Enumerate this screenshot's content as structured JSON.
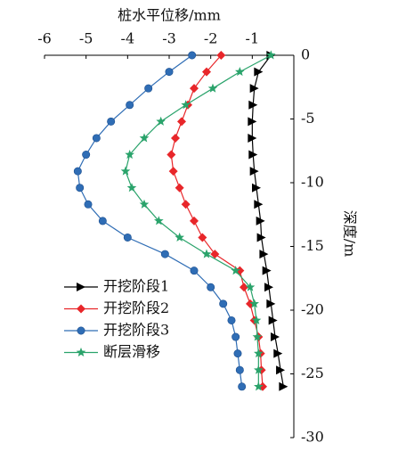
{
  "chart_data": {
    "type": "line",
    "x_label": "桩水平位移/mm",
    "y_label": "深度/m",
    "xlim": [
      -6,
      0
    ],
    "xticks": [
      -6,
      -5,
      -4,
      -3,
      -2,
      -1
    ],
    "ylim": [
      -30,
      0
    ],
    "yticks": [
      0,
      -5,
      -10,
      -15,
      -20,
      -25,
      -30
    ],
    "y": [
      0,
      -1.3,
      -2.6,
      -3.9,
      -5.2,
      -6.5,
      -7.8,
      -9.1,
      -10.4,
      -11.7,
      -13,
      -14.3,
      -15.6,
      -16.9,
      -18.2,
      -19.5,
      -20.8,
      -22.1,
      -23.4,
      -24.7,
      -26
    ],
    "series": [
      {
        "name": "开挖阶段1",
        "color": "#000000",
        "marker": "triangle",
        "values": [
          -0.55,
          -0.85,
          -0.95,
          -0.98,
          -1.0,
          -1.0,
          -0.98,
          -0.95,
          -0.9,
          -0.85,
          -0.8,
          -0.78,
          -0.72,
          -0.65,
          -0.6,
          -0.55,
          -0.5,
          -0.45,
          -0.38,
          -0.32,
          -0.25
        ]
      },
      {
        "name": "开挖阶段2",
        "color": "#e8262a",
        "marker": "diamond",
        "values": [
          -1.75,
          -2.1,
          -2.4,
          -2.55,
          -2.7,
          -2.85,
          -2.95,
          -2.9,
          -2.75,
          -2.6,
          -2.4,
          -2.2,
          -1.9,
          -1.3,
          -1.2,
          -1.05,
          -0.95,
          -0.85,
          -0.8,
          -0.78,
          -0.75
        ]
      },
      {
        "name": "开挖阶段3",
        "color": "#2f6db5",
        "marker": "circle",
        "values": [
          -2.45,
          -3.0,
          -3.5,
          -3.95,
          -4.4,
          -4.75,
          -5.0,
          -5.2,
          -5.15,
          -4.95,
          -4.6,
          -4.0,
          -3.1,
          -2.4,
          -2.0,
          -1.7,
          -1.5,
          -1.4,
          -1.35,
          -1.3,
          -1.25
        ]
      },
      {
        "name": "断层滑移",
        "color": "#2aa36b",
        "marker": "star",
        "values": [
          -0.55,
          -1.3,
          -1.95,
          -2.6,
          -3.2,
          -3.6,
          -3.95,
          -4.05,
          -3.9,
          -3.6,
          -3.25,
          -2.75,
          -2.1,
          -1.4,
          -1.05,
          -0.95,
          -0.9,
          -0.88,
          -0.85,
          -0.85,
          -0.85
        ]
      }
    ]
  }
}
